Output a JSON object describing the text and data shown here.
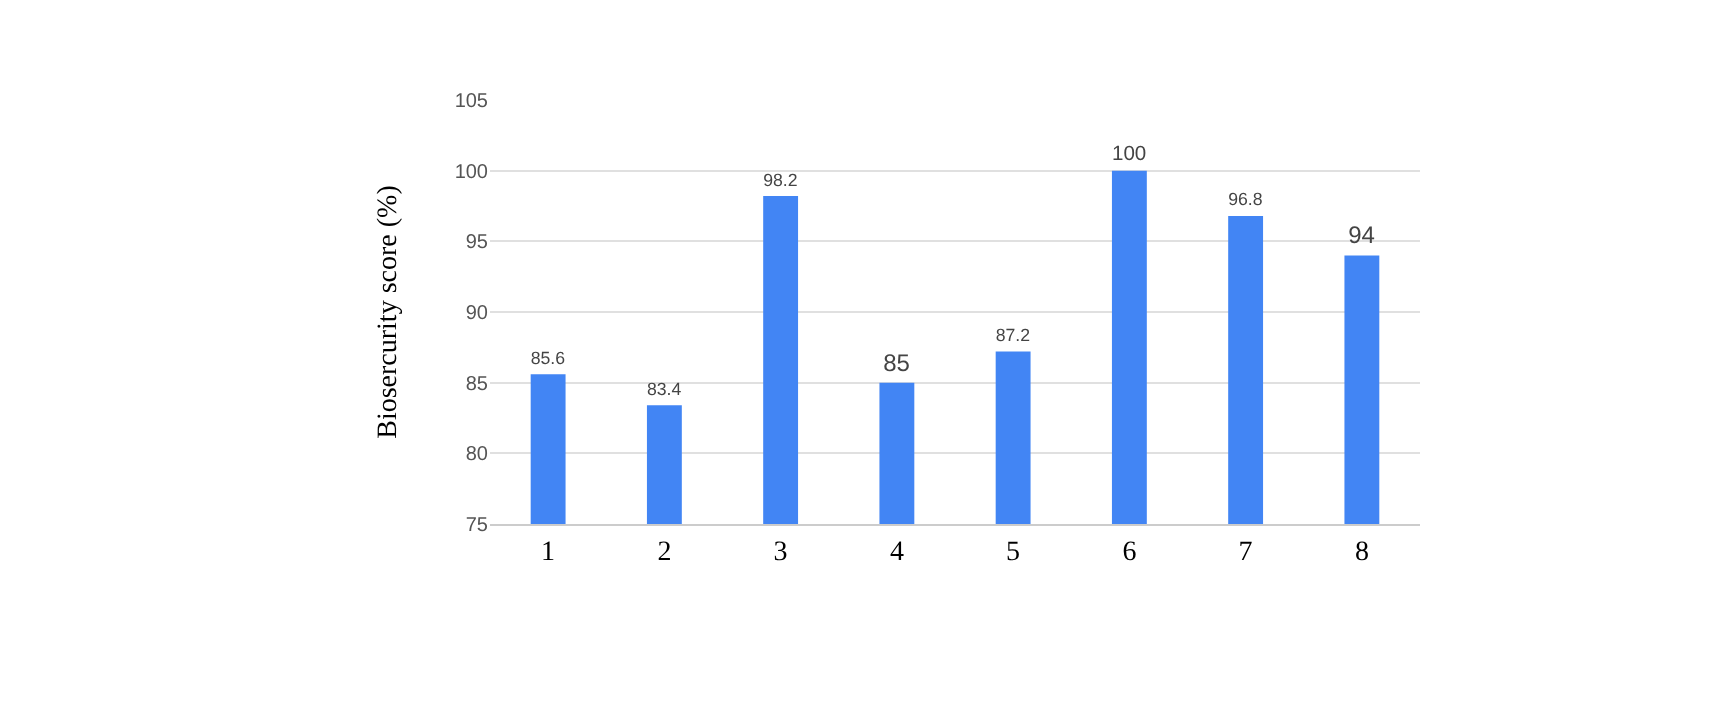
{
  "chart_data": {
    "type": "bar",
    "ylabel": "Biosercurity score (%)",
    "categories": [
      "1",
      "2",
      "3",
      "4",
      "5",
      "6",
      "7",
      "8"
    ],
    "values": [
      85.6,
      83.4,
      98.2,
      85,
      87.2,
      100,
      96.8,
      94
    ],
    "color": "#4285f4",
    "ylim": [
      75,
      105
    ],
    "yticks": [
      75,
      80,
      85,
      90,
      95,
      100,
      105
    ],
    "grid": "y",
    "data_labels": true
  }
}
